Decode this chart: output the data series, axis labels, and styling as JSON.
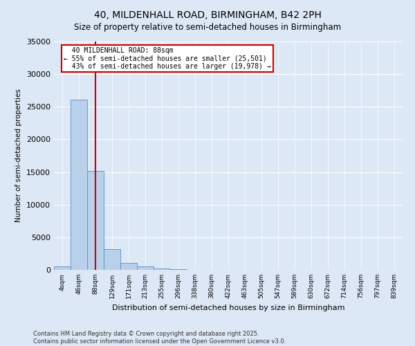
{
  "title": "40, MILDENHALL ROAD, BIRMINGHAM, B42 2PH",
  "subtitle": "Size of property relative to semi-detached houses in Birmingham",
  "xlabel": "Distribution of semi-detached houses by size in Birmingham",
  "ylabel": "Number of semi-detached properties",
  "property_label": "40 MILDENHALL ROAD: 88sqm",
  "pct_smaller": 55,
  "count_smaller": 25501,
  "pct_larger": 43,
  "count_larger": 19978,
  "bin_labels": [
    "4sqm",
    "46sqm",
    "88sqm",
    "129sqm",
    "171sqm",
    "213sqm",
    "255sqm",
    "296sqm",
    "338sqm",
    "380sqm",
    "422sqm",
    "463sqm",
    "505sqm",
    "547sqm",
    "589sqm",
    "630sqm",
    "672sqm",
    "714sqm",
    "756sqm",
    "797sqm",
    "839sqm"
  ],
  "bar_values": [
    480,
    26100,
    15200,
    3200,
    1100,
    480,
    200,
    100,
    50,
    30,
    20,
    15,
    10,
    8,
    6,
    5,
    5,
    5,
    5,
    5,
    5
  ],
  "bar_color": "#b8d0ea",
  "bar_edge_color": "#5b8ec4",
  "red_line_bin": 2,
  "red_line_color": "#cc0000",
  "annotation_box_color": "#cc0000",
  "background_color": "#dce8f5",
  "plot_bg_color": "#dce8f5",
  "ylim": [
    0,
    35000
  ],
  "yticks": [
    0,
    5000,
    10000,
    15000,
    20000,
    25000,
    30000,
    35000
  ],
  "footer_line1": "Contains HM Land Registry data © Crown copyright and database right 2025.",
  "footer_line2": "Contains public sector information licensed under the Open Government Licence v3.0.",
  "figsize": [
    6.0,
    5.0
  ],
  "dpi": 100
}
